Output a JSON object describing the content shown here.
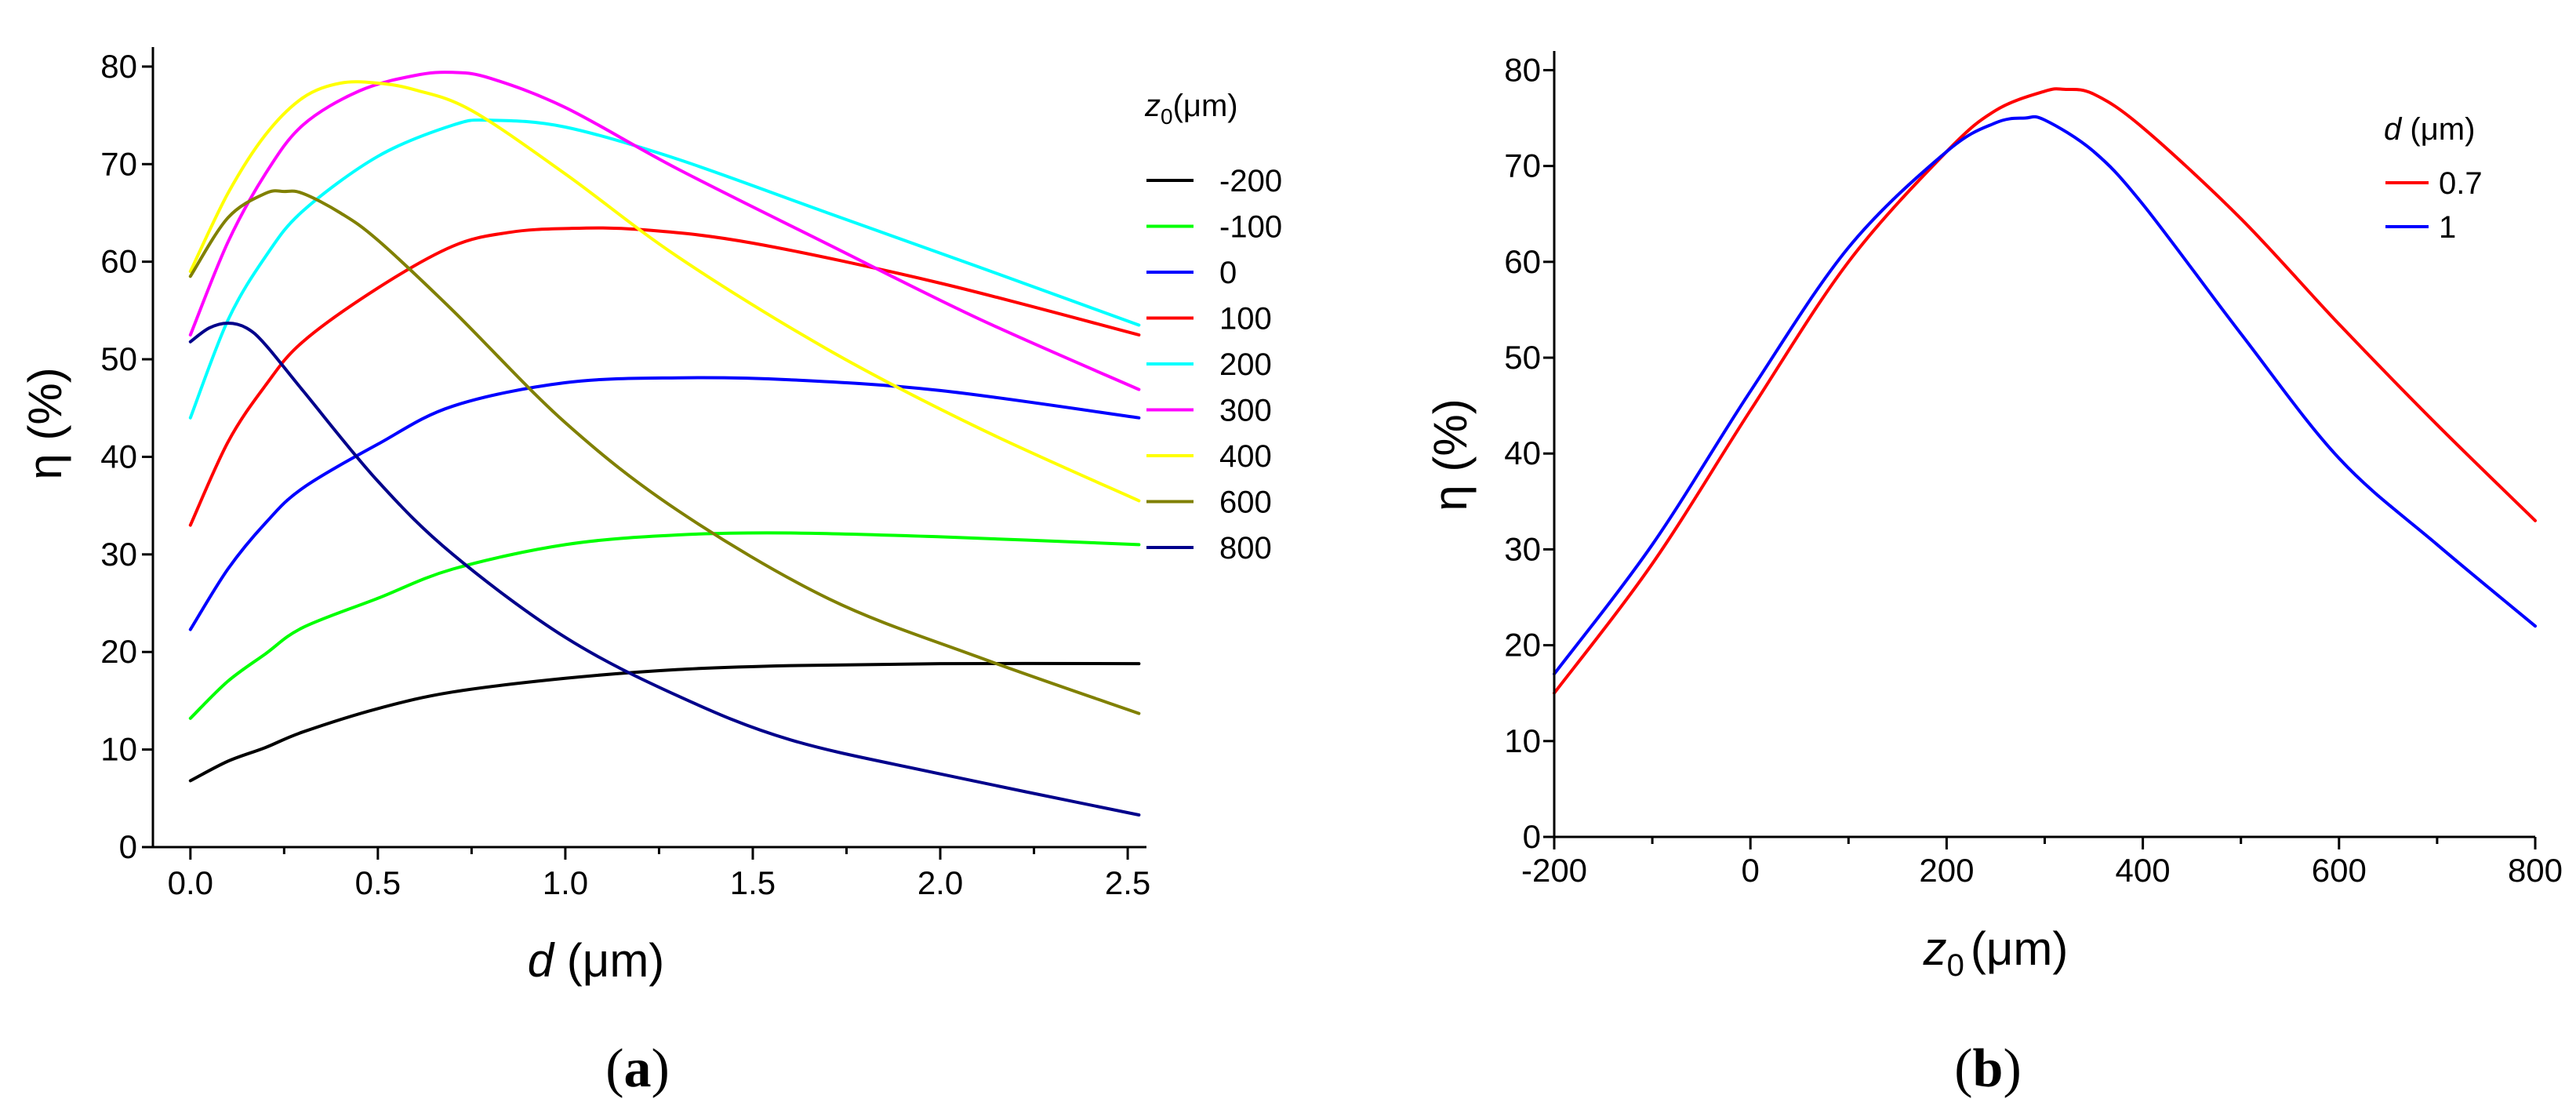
{
  "chart_data": [
    {
      "type": "line",
      "panel_open": "(",
      "panel_letter": "a",
      "panel_close": ")",
      "xlabel_var": "d",
      "xlabel_unit": "(μm)",
      "ylabel": "η (%)",
      "xlim": [
        -0.1,
        2.55
      ],
      "ylim": [
        0,
        82
      ],
      "xticks": [
        0,
        0.5,
        1,
        1.5,
        2,
        2.5
      ],
      "xtick_labels": [
        "0.0",
        "0.5",
        "1.0",
        "1.5",
        "2.0",
        "2.5"
      ],
      "yticks": [
        0,
        10,
        20,
        30,
        40,
        50,
        60,
        70,
        80
      ],
      "ytick_labels": [
        "0",
        "10",
        "20",
        "30",
        "40",
        "50",
        "60",
        "70",
        "80"
      ],
      "legend_title_var": "z",
      "legend_title_sub": "0",
      "legend_title_unit": "(μm)",
      "legend_position": "right",
      "series": [
        {
          "name": "-200",
          "color": "#000000",
          "x": [
            0,
            0.1,
            0.2,
            0.3,
            0.5,
            0.7,
            1.0,
            1.3,
            1.6,
            2.0,
            2.53
          ],
          "y": [
            6.8,
            8.8,
            10.2,
            11.8,
            14.2,
            15.9,
            17.3,
            18.2,
            18.6,
            18.8,
            18.8
          ]
        },
        {
          "name": "-100",
          "color": "#00ff00",
          "x": [
            0,
            0.1,
            0.2,
            0.3,
            0.5,
            0.7,
            1.0,
            1.3,
            1.6,
            2.0,
            2.53
          ],
          "y": [
            13.2,
            17.0,
            19.8,
            22.5,
            25.5,
            28.5,
            31.0,
            32.0,
            32.2,
            31.8,
            31.0
          ]
        },
        {
          "name": "0",
          "color": "#0000ff",
          "x": [
            0,
            0.1,
            0.2,
            0.3,
            0.5,
            0.7,
            1.0,
            1.3,
            1.6,
            2.0,
            2.53
          ],
          "y": [
            22.3,
            28.5,
            33.2,
            36.8,
            41.3,
            45.2,
            47.6,
            48.1,
            47.9,
            46.8,
            44.0
          ]
        },
        {
          "name": "100",
          "color": "#ff0000",
          "x": [
            0,
            0.1,
            0.2,
            0.3,
            0.5,
            0.7,
            0.85,
            1.0,
            1.2,
            1.5,
            2.0,
            2.53
          ],
          "y": [
            33.0,
            41.5,
            47.3,
            51.8,
            57.3,
            61.6,
            63.0,
            63.4,
            63.3,
            61.9,
            57.8,
            52.5
          ]
        },
        {
          "name": "200",
          "color": "#00ffff",
          "x": [
            0,
            0.1,
            0.2,
            0.3,
            0.5,
            0.7,
            0.8,
            1.0,
            1.3,
            1.7,
            2.1,
            2.53
          ],
          "y": [
            44.0,
            54.0,
            60.5,
            65.2,
            70.8,
            74.0,
            74.5,
            73.8,
            70.5,
            65.0,
            59.5,
            53.5
          ]
        },
        {
          "name": "300",
          "color": "#ff00ff",
          "x": [
            0,
            0.1,
            0.2,
            0.3,
            0.45,
            0.6,
            0.7,
            0.8,
            1.0,
            1.3,
            1.7,
            2.1,
            2.53
          ],
          "y": [
            52.5,
            62.0,
            69.0,
            74.0,
            77.5,
            79.1,
            79.4,
            78.8,
            75.8,
            69.5,
            61.8,
            54.2,
            46.9
          ]
        },
        {
          "name": "400",
          "color": "#ffff00",
          "x": [
            0,
            0.1,
            0.2,
            0.3,
            0.4,
            0.5,
            0.6,
            0.75,
            1.0,
            1.3,
            1.7,
            2.1,
            2.53
          ],
          "y": [
            59.0,
            67.0,
            73.0,
            76.8,
            78.3,
            78.3,
            77.6,
            75.5,
            69.0,
            60.5,
            51.0,
            43.0,
            35.5
          ]
        },
        {
          "name": "600",
          "color": "#808000",
          "x": [
            0,
            0.1,
            0.2,
            0.25,
            0.3,
            0.4,
            0.5,
            0.7,
            1.0,
            1.3,
            1.7,
            2.1,
            2.53
          ],
          "y": [
            58.5,
            64.5,
            67.0,
            67.2,
            67.0,
            65.0,
            62.2,
            55.0,
            43.5,
            34.5,
            25.5,
            19.5,
            13.7
          ]
        },
        {
          "name": "800",
          "color": "#00008b",
          "x": [
            0,
            0.05,
            0.1,
            0.15,
            0.2,
            0.3,
            0.5,
            0.7,
            1.0,
            1.3,
            1.6,
            2.0,
            2.53
          ],
          "y": [
            51.8,
            53.2,
            53.7,
            53.2,
            51.5,
            46.8,
            37.5,
            30.0,
            21.5,
            15.5,
            11.0,
            7.5,
            3.3
          ]
        }
      ]
    },
    {
      "type": "line",
      "panel_open": "(",
      "panel_letter": "b",
      "panel_close": ")",
      "xlabel_var": "z",
      "xlabel_sub": "0",
      "xlabel_unit": "(μm)",
      "ylabel": "η (%)",
      "xlim": [
        -200,
        800
      ],
      "ylim": [
        0,
        82
      ],
      "xticks": [
        -200,
        0,
        200,
        400,
        600,
        800
      ],
      "xtick_labels": [
        "-200",
        "0",
        "200",
        "400",
        "600",
        "800"
      ],
      "yticks": [
        0,
        10,
        20,
        30,
        40,
        50,
        60,
        70,
        80
      ],
      "ytick_labels": [
        "0",
        "10",
        "20",
        "30",
        "40",
        "50",
        "60",
        "70",
        "80"
      ],
      "legend_title_var": "d",
      "legend_title_unit": "(μm)",
      "legend_position": "top-right",
      "series": [
        {
          "name": "0.7",
          "color": "#ff0000",
          "x": [
            -200,
            -100,
            0,
            100,
            200,
            250,
            300,
            320,
            350,
            400,
            500,
            600,
            700,
            800
          ],
          "y": [
            15.0,
            28.5,
            44.5,
            60.0,
            71.5,
            75.8,
            77.8,
            78.0,
            77.5,
            74.0,
            64.5,
            53.5,
            43.0,
            33.0
          ]
        },
        {
          "name": "1",
          "color": "#0000ff",
          "x": [
            -200,
            -100,
            0,
            100,
            200,
            250,
            280,
            300,
            350,
            400,
            500,
            600,
            700,
            800
          ],
          "y": [
            17.0,
            30.5,
            46.5,
            61.5,
            71.5,
            74.5,
            75.0,
            74.8,
            71.5,
            66.0,
            52.5,
            39.5,
            30.5,
            22.0
          ]
        }
      ]
    }
  ]
}
